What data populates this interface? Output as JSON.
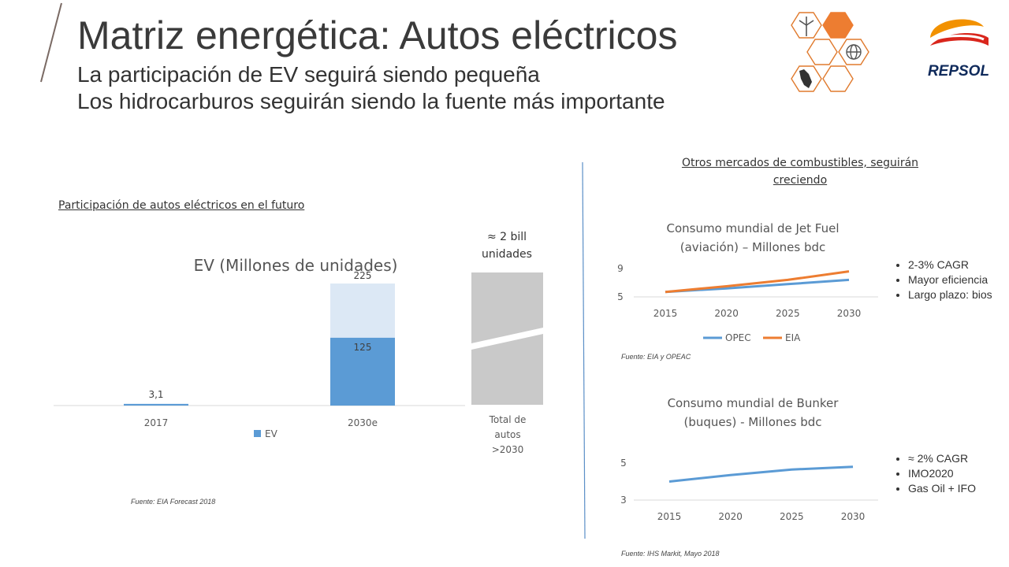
{
  "header": {
    "title": "Matriz energética: Autos eléctricos",
    "subtitle1": "La participación de EV seguirá siendo pequeña",
    "subtitle2": "Los hidrocarburos seguirán siendo la fuente más importante"
  },
  "logo": {
    "text": "REPSOL",
    "colors": {
      "orange": "#f29100",
      "red": "#d9261c",
      "darkblue": "#0f2a5b"
    }
  },
  "left": {
    "section_label": "Participación de autos eléctricos en el futuro",
    "source": "Fuente: EIA Forecast 2018",
    "total_label_top": "≈ 2 bill unidades",
    "total_label_bottom": [
      "Total de",
      "autos",
      ">2030"
    ]
  },
  "right": {
    "section_label_line1": "Otros mercados de combustibles, seguirán",
    "section_label_line2": "creciendo",
    "jet_source": "Fuente: EIA y OPEAC",
    "bunker_source": "Fuente: IHS Markit, Mayo 2018",
    "jet_bullets": [
      "2-3% CAGR",
      "Mayor eficiencia",
      "Largo plazo: bios"
    ],
    "bunker_bullets": [
      "≈ 2% CAGR",
      "IMO2020",
      "Gas Oil + IFO"
    ]
  },
  "chart_data": [
    {
      "type": "bar",
      "title": "EV (Millones de unidades)",
      "categories": [
        "2017",
        "2030e"
      ],
      "series": [
        {
          "name": "EV",
          "values": [
            3.1,
            125
          ],
          "labels": [
            "3,1",
            "125"
          ],
          "color": "#5b9bd5"
        },
        {
          "values": [
            0,
            225
          ],
          "labels": [
            "",
            "225"
          ],
          "color": "#dce8f5"
        }
      ],
      "ylim": [
        0,
        500
      ]
    },
    {
      "type": "line",
      "title_line1": "Consumo mundial de Jet Fuel",
      "title_line2": "(aviación) – Millones bdc",
      "x": [
        "2015",
        "2020",
        "2025",
        "2030"
      ],
      "yticks": [
        5,
        9
      ],
      "ylim": [
        5,
        9
      ],
      "series": [
        {
          "name": "OPEC",
          "values": [
            5.7,
            6.2,
            6.8,
            7.4
          ],
          "color": "#5b9bd5"
        },
        {
          "name": "EIA",
          "values": [
            5.7,
            6.5,
            7.4,
            8.6
          ],
          "color": "#ed7d31"
        }
      ]
    },
    {
      "type": "line",
      "title_line1": "Consumo mundial de Bunker",
      "title_line2": "(buques) - Millones bdc",
      "x": [
        "2015",
        "2020",
        "2025",
        "2030"
      ],
      "yticks": [
        3,
        5
      ],
      "ylim": [
        3,
        5
      ],
      "series": [
        {
          "values": [
            4.0,
            4.35,
            4.65,
            4.8
          ],
          "color": "#5b9bd5"
        }
      ]
    }
  ]
}
